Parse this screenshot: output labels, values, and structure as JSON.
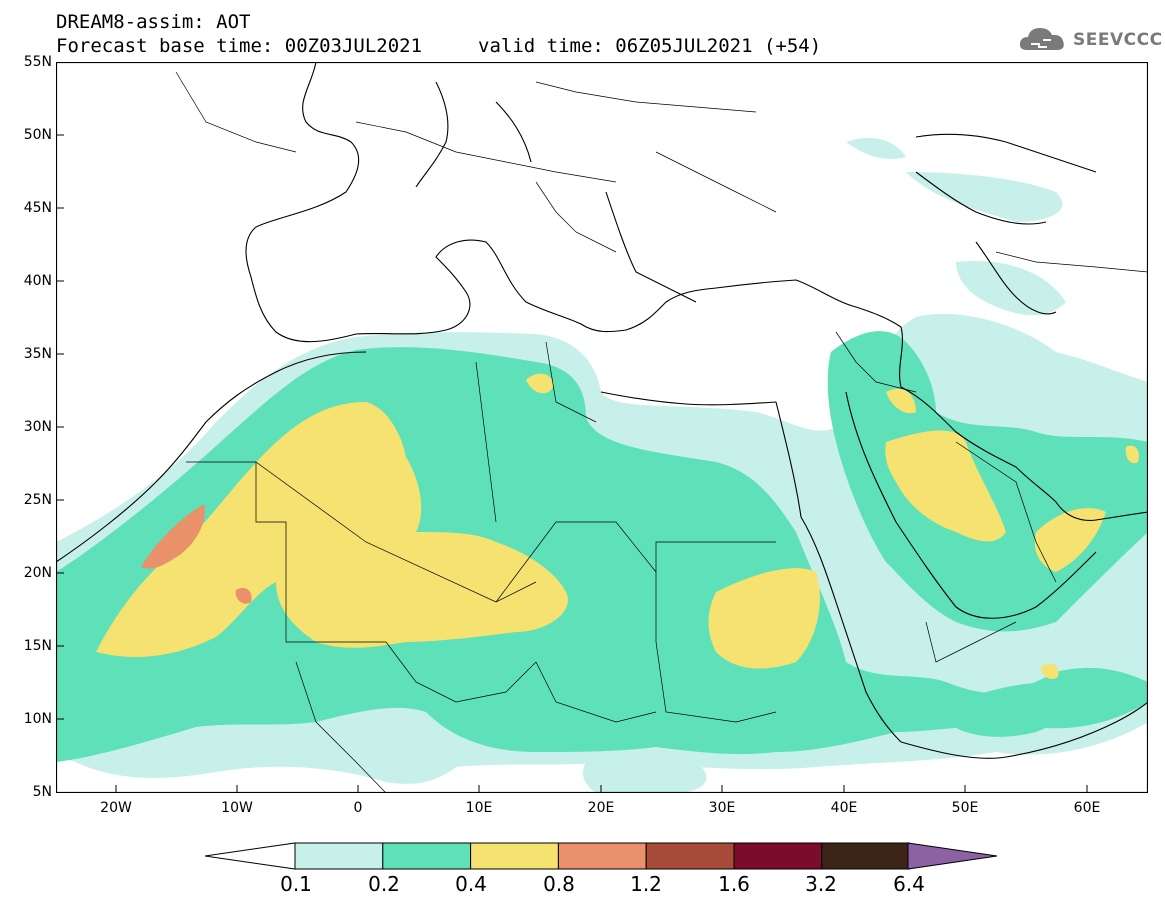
{
  "header": {
    "line1": "DREAM8-assim: AOT",
    "line2": "Forecast base time: 00Z03JUL2021",
    "valid": "valid time: 06Z05JUL2021 (+54)"
  },
  "logo": {
    "text": "SEEVCCC",
    "color": "#7a7a7a"
  },
  "map": {
    "extent": {
      "lon_min": -25,
      "lon_max": 65,
      "lat_min": 5,
      "lat_max": 55
    },
    "lat_ticks": [
      "55N",
      "50N",
      "45N",
      "40N",
      "35N",
      "30N",
      "25N",
      "20N",
      "15N",
      "10N",
      "5N"
    ],
    "lon_ticks": [
      "20W",
      "10W",
      "0",
      "10E",
      "20E",
      "30E",
      "40E",
      "50E",
      "60E"
    ],
    "coastline_color": "#000000"
  },
  "legend": {
    "colors": [
      "#c6f0e9",
      "#5ee0b8",
      "#f5e270",
      "#e8916a",
      "#a84b3a",
      "#7b0c2c",
      "#3c2416",
      "#8c62a3"
    ],
    "left_arrow_color": "#ffffff",
    "labels": [
      "0.1",
      "0.2",
      "0.4",
      "0.8",
      "1.2",
      "1.6",
      "3.2",
      "6.4"
    ]
  }
}
